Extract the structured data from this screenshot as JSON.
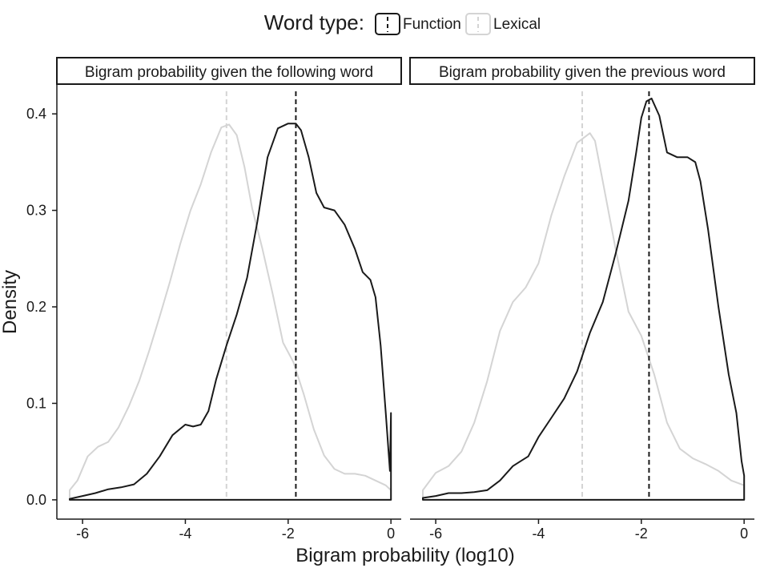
{
  "chart_data": {
    "type": "line",
    "xlabel": "Bigram probability (log10)",
    "ylabel": "Density",
    "xlim": [
      -6.5,
      0.2
    ],
    "ylim": [
      -0.02,
      0.43
    ],
    "x_ticks": [
      -6,
      -4,
      -2,
      0
    ],
    "y_ticks": [
      0.0,
      0.1,
      0.2,
      0.3,
      0.4
    ],
    "x_tick_labels": [
      "-6",
      "-4",
      "-2",
      "0"
    ],
    "y_tick_labels": [
      "0.0",
      "0.1",
      "0.2",
      "0.3",
      "0.4"
    ],
    "legend": {
      "title": "Word type:",
      "position": "top",
      "entries": [
        "Function",
        "Lexical"
      ]
    },
    "colors": {
      "Function": "#1a1a1a",
      "Lexical": "#d4d4d4"
    },
    "panels": [
      {
        "strip": "Bigram probability given the following word",
        "series": [
          {
            "name": "Function",
            "mean_line_x": -1.85,
            "x": [
              -6.25,
              -6.0,
              -5.75,
              -5.5,
              -5.25,
              -5.0,
              -4.75,
              -4.5,
              -4.25,
              -4.0,
              -3.85,
              -3.7,
              -3.55,
              -3.4,
              -3.2,
              -3.0,
              -2.8,
              -2.6,
              -2.4,
              -2.2,
              -2.0,
              -1.85,
              -1.75,
              -1.6,
              -1.45,
              -1.3,
              -1.1,
              -0.9,
              -0.7,
              -0.55,
              -0.4,
              -0.3,
              -0.2,
              -0.1,
              -0.02,
              0.0,
              0.0
            ],
            "y": [
              0.001,
              0.004,
              0.007,
              0.011,
              0.013,
              0.016,
              0.027,
              0.045,
              0.067,
              0.078,
              0.076,
              0.078,
              0.092,
              0.125,
              0.16,
              0.192,
              0.23,
              0.288,
              0.355,
              0.385,
              0.39,
              0.39,
              0.383,
              0.355,
              0.318,
              0.303,
              0.3,
              0.285,
              0.26,
              0.236,
              0.228,
              0.21,
              0.16,
              0.09,
              0.03,
              0.09,
              0.0
            ]
          },
          {
            "name": "Lexical",
            "mean_line_x": -3.2,
            "x": [
              -6.25,
              -6.1,
              -5.9,
              -5.7,
              -5.5,
              -5.3,
              -5.1,
              -4.9,
              -4.7,
              -4.5,
              -4.3,
              -4.1,
              -3.9,
              -3.7,
              -3.5,
              -3.3,
              -3.15,
              -3.0,
              -2.85,
              -2.7,
              -2.5,
              -2.3,
              -2.1,
              -1.9,
              -1.7,
              -1.5,
              -1.3,
              -1.1,
              -0.9,
              -0.7,
              -0.5,
              -0.3,
              -0.1,
              0.0
            ],
            "y": [
              0.01,
              0.02,
              0.045,
              0.055,
              0.06,
              0.075,
              0.097,
              0.123,
              0.155,
              0.19,
              0.226,
              0.265,
              0.3,
              0.327,
              0.36,
              0.386,
              0.389,
              0.378,
              0.345,
              0.302,
              0.26,
              0.213,
              0.163,
              0.143,
              0.11,
              0.073,
              0.046,
              0.032,
              0.027,
              0.027,
              0.025,
              0.02,
              0.015,
              0.01
            ]
          }
        ]
      },
      {
        "strip": "Bigram probability given the previous word",
        "series": [
          {
            "name": "Function",
            "mean_line_x": -1.85,
            "x": [
              -6.25,
              -6.0,
              -5.75,
              -5.5,
              -5.25,
              -5.0,
              -4.75,
              -4.5,
              -4.35,
              -4.2,
              -4.0,
              -3.75,
              -3.5,
              -3.25,
              -3.0,
              -2.75,
              -2.5,
              -2.25,
              -2.1,
              -2.0,
              -1.9,
              -1.8,
              -1.65,
              -1.5,
              -1.3,
              -1.1,
              -0.95,
              -0.85,
              -0.7,
              -0.5,
              -0.3,
              -0.15,
              -0.05,
              0.0,
              0.0
            ],
            "y": [
              0.002,
              0.004,
              0.007,
              0.007,
              0.008,
              0.01,
              0.02,
              0.035,
              0.04,
              0.045,
              0.065,
              0.085,
              0.105,
              0.133,
              0.173,
              0.205,
              0.255,
              0.31,
              0.36,
              0.396,
              0.413,
              0.416,
              0.398,
              0.36,
              0.355,
              0.355,
              0.35,
              0.33,
              0.28,
              0.2,
              0.13,
              0.09,
              0.04,
              0.025,
              0.0
            ]
          },
          {
            "name": "Lexical",
            "mean_line_x": -3.15,
            "x": [
              -6.25,
              -6.0,
              -5.75,
              -5.5,
              -5.25,
              -5.0,
              -4.75,
              -4.5,
              -4.25,
              -4.0,
              -3.75,
              -3.5,
              -3.25,
              -3.0,
              -2.9,
              -2.75,
              -2.5,
              -2.25,
              -2.0,
              -1.75,
              -1.5,
              -1.25,
              -1.0,
              -0.75,
              -0.5,
              -0.25,
              0.0
            ],
            "y": [
              0.01,
              0.028,
              0.035,
              0.05,
              0.08,
              0.123,
              0.175,
              0.205,
              0.22,
              0.245,
              0.295,
              0.335,
              0.37,
              0.38,
              0.372,
              0.33,
              0.26,
              0.195,
              0.17,
              0.13,
              0.08,
              0.053,
              0.043,
              0.037,
              0.03,
              0.02,
              0.015
            ]
          }
        ]
      }
    ]
  }
}
